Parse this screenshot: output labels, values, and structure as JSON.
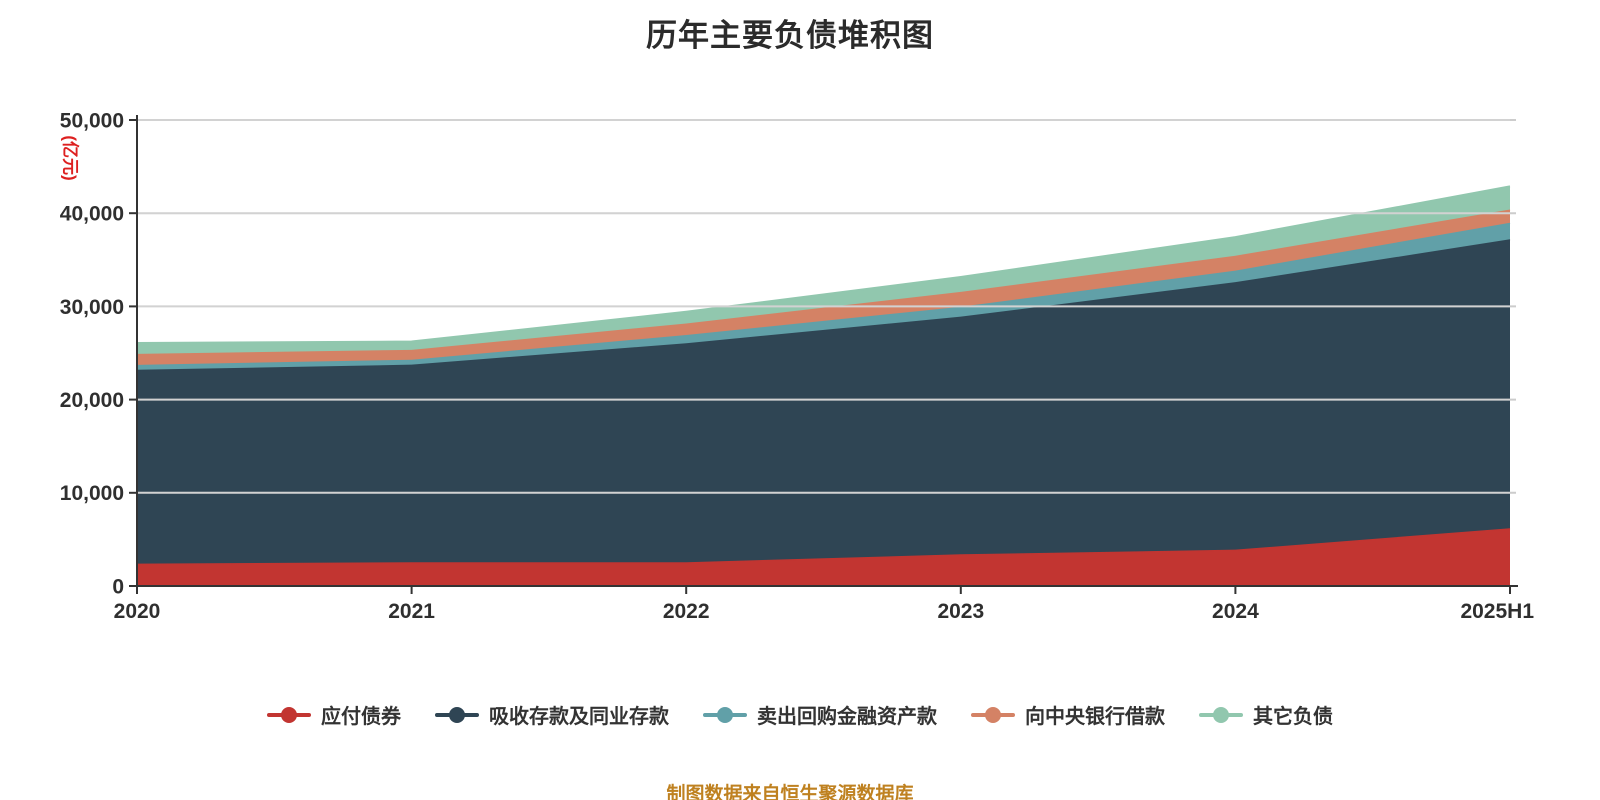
{
  "title": "历年主要负债堆积图",
  "y_axis_name": "(亿元)",
  "footer": "制图数据来自恒生聚源数据库",
  "colors": {
    "axis": "#333333",
    "tick_label": "#2f2f2f",
    "gridline": "#cccccc",
    "title": "#2b2b2b",
    "y_axis_name": "#dd2020",
    "footer": "#bf8120",
    "background": "#ffffff"
  },
  "chart_data": {
    "type": "area",
    "stacked": true,
    "title": "历年主要负债堆积图",
    "ylabel": "(亿元)",
    "xlabel": "",
    "categories": [
      "2020",
      "2021",
      "2022",
      "2023",
      "2024",
      "2025H1"
    ],
    "series": [
      {
        "name": "应付债券",
        "color": "#c23531",
        "values": [
          2400,
          2550,
          2550,
          3400,
          3900,
          6200
        ]
      },
      {
        "name": "吸收存款及同业存款",
        "color": "#2f4554",
        "values": [
          20800,
          21200,
          23500,
          25500,
          28700,
          31000
        ]
      },
      {
        "name": "卖出回购金融资产款",
        "color": "#61a0a8",
        "values": [
          530,
          530,
          880,
          1060,
          1240,
          1780
        ]
      },
      {
        "name": "向中央银行借款",
        "color": "#d48265",
        "values": [
          1170,
          1060,
          1240,
          1600,
          1600,
          1420
        ]
      },
      {
        "name": "其它负债",
        "color": "#91c7ae",
        "values": [
          1170,
          890,
          1250,
          1590,
          2000,
          2480
        ]
      }
    ],
    "ylim": [
      0,
      50000
    ],
    "yticks": [
      0,
      10000,
      20000,
      30000,
      40000,
      50000
    ],
    "ytick_labels": [
      "0",
      "10,000",
      "20,000",
      "30,000",
      "40,000",
      "50,000"
    ],
    "grid": true,
    "legend_position": "bottom"
  }
}
